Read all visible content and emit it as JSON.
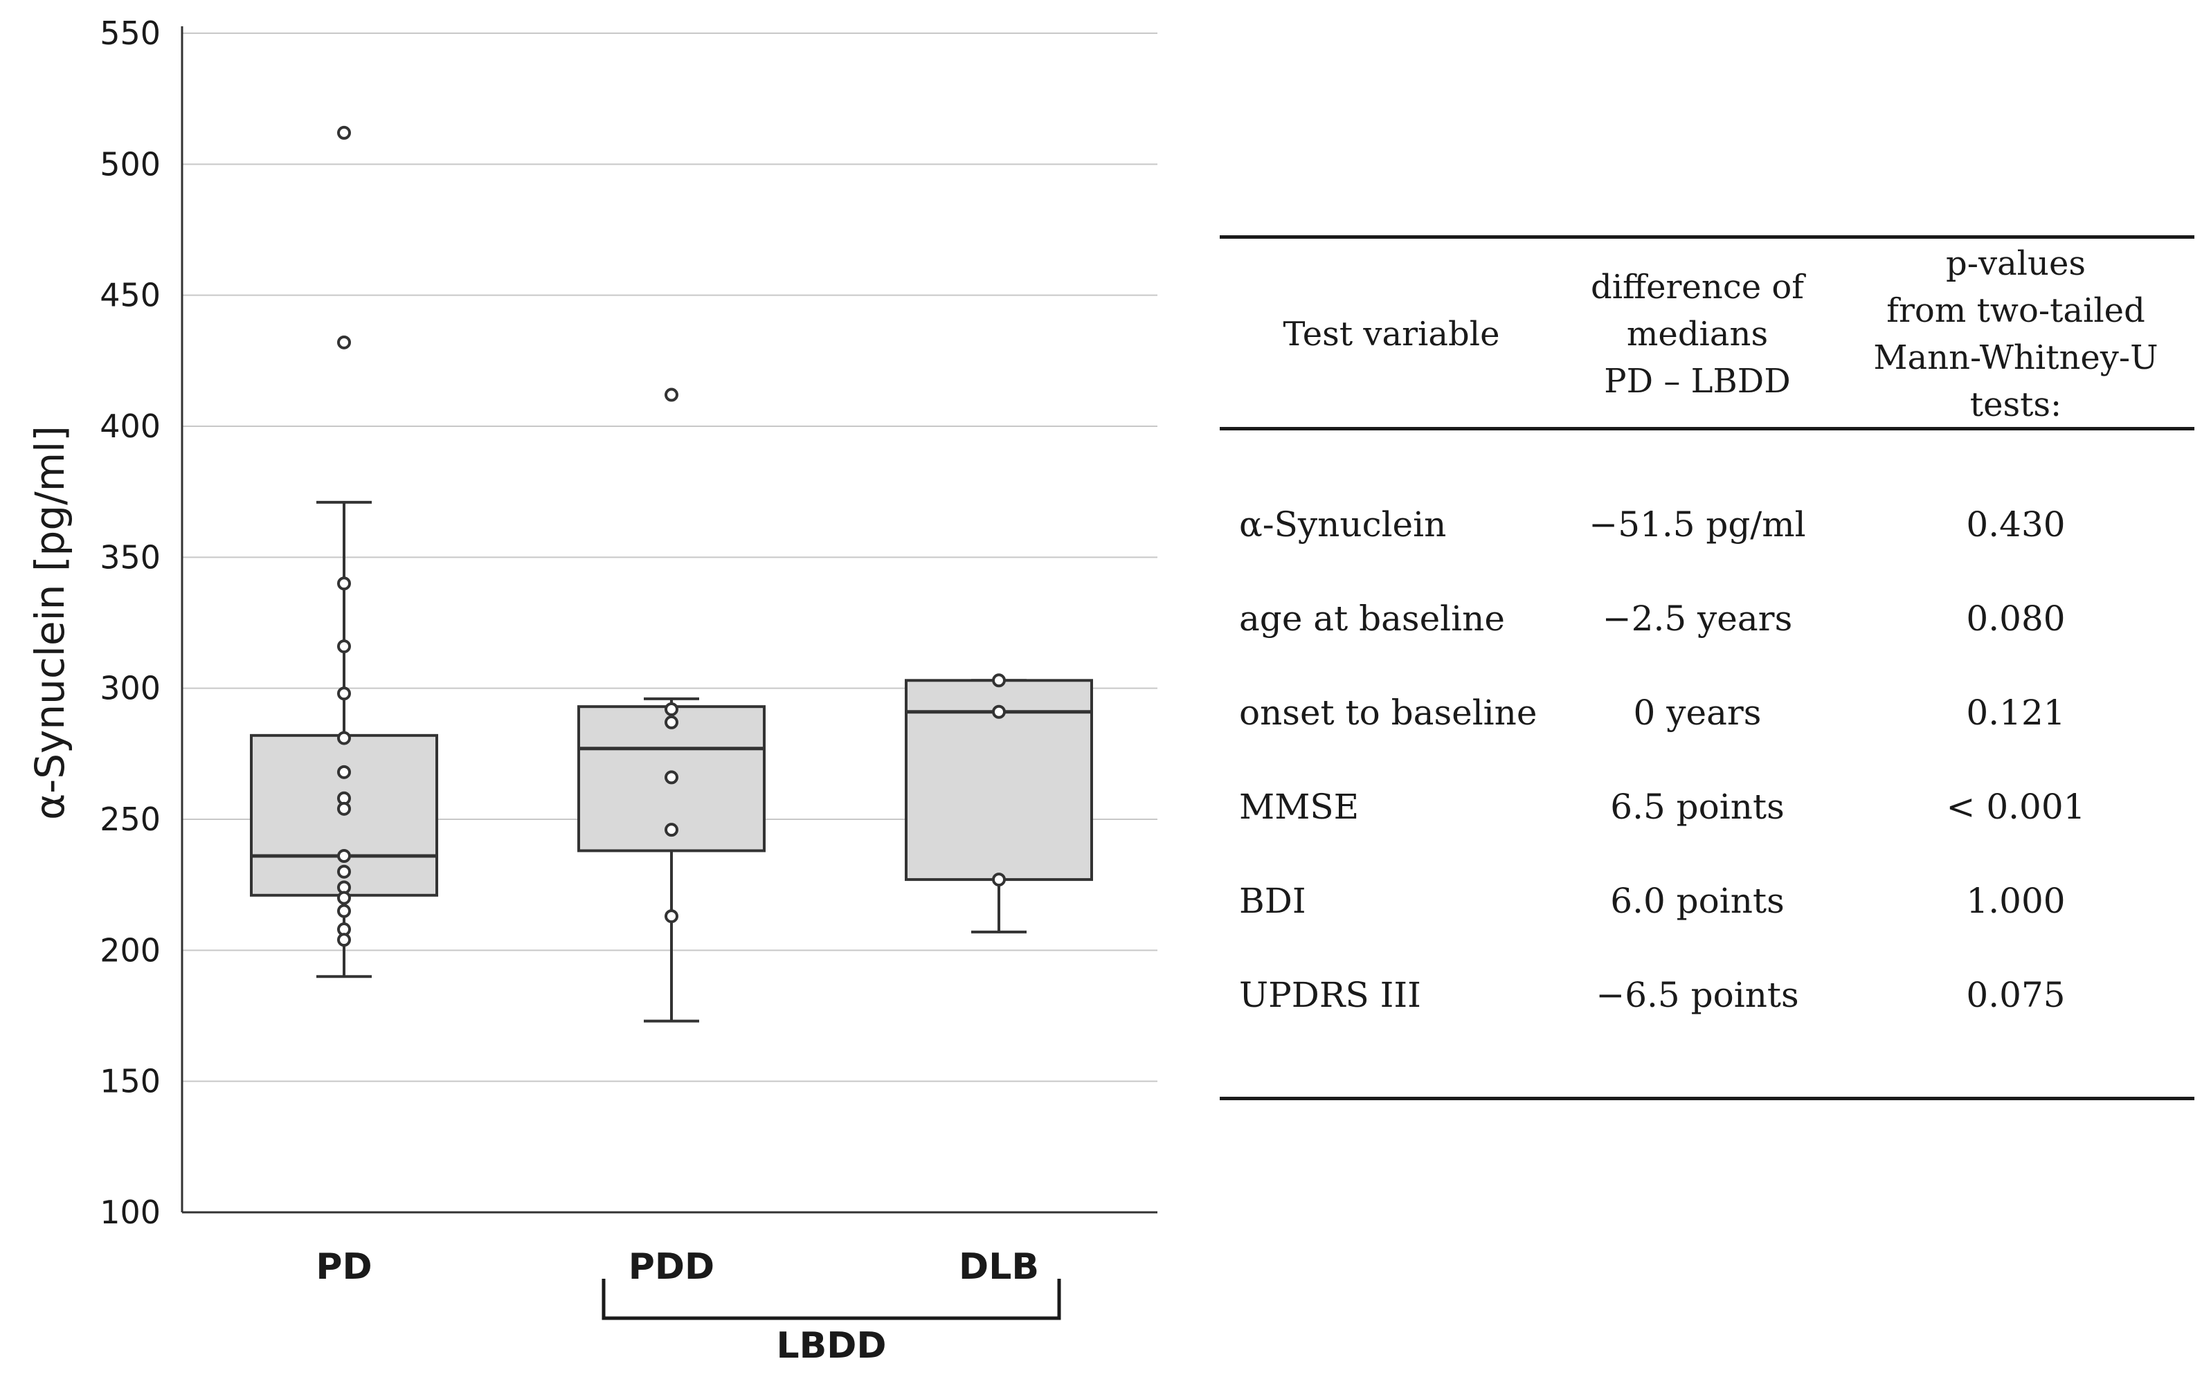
{
  "chart_data": {
    "type": "box",
    "ylabel": "α-Synuclein [pg/ml]",
    "xlabel": "",
    "ylim": [
      100,
      550
    ],
    "yticks": [
      100,
      150,
      200,
      250,
      300,
      350,
      400,
      450,
      500,
      550
    ],
    "grid": true,
    "group_bracket": {
      "label": "LBDD",
      "spans": [
        "PDD",
        "DLB"
      ]
    },
    "series": [
      {
        "name": "PD",
        "whisker_low": 190,
        "q1": 221,
        "median": 236,
        "q3": 282,
        "whisker_high": 371,
        "points": [
          512,
          432,
          340,
          316,
          298,
          281,
          268,
          258,
          254,
          236,
          230,
          224,
          220,
          215,
          208,
          204
        ]
      },
      {
        "name": "PDD",
        "whisker_low": 173,
        "q1": 238,
        "median": 277,
        "q3": 293,
        "whisker_high": 296,
        "points": [
          412,
          292,
          287,
          266,
          246,
          213
        ]
      },
      {
        "name": "DLB",
        "whisker_low": 207,
        "q1": 227,
        "median": 291,
        "q3": 303,
        "whisker_high": 303,
        "points": [
          303,
          291,
          227
        ]
      }
    ]
  },
  "table": {
    "headers": [
      "Test variable",
      "difference of\nmedians\nPD – LBDD",
      "p-values\nfrom two-tailed\nMann-Whitney-U\ntests:"
    ],
    "rows": [
      {
        "variable": "α-Synuclein",
        "difference": "−51.5 pg/ml",
        "p": "0.430"
      },
      {
        "variable": "age at baseline",
        "difference": "−2.5 years",
        "p": "0.080"
      },
      {
        "variable": "onset to baseline",
        "difference": "0 years",
        "p": "0.121"
      },
      {
        "variable": "MMSE",
        "difference": "6.5 points",
        "p": "< 0.001"
      },
      {
        "variable": "BDI",
        "difference": "6.0 points",
        "p": "1.000"
      },
      {
        "variable": "UPDRS III",
        "difference": "−6.5 points",
        "p": "0.075"
      }
    ]
  }
}
